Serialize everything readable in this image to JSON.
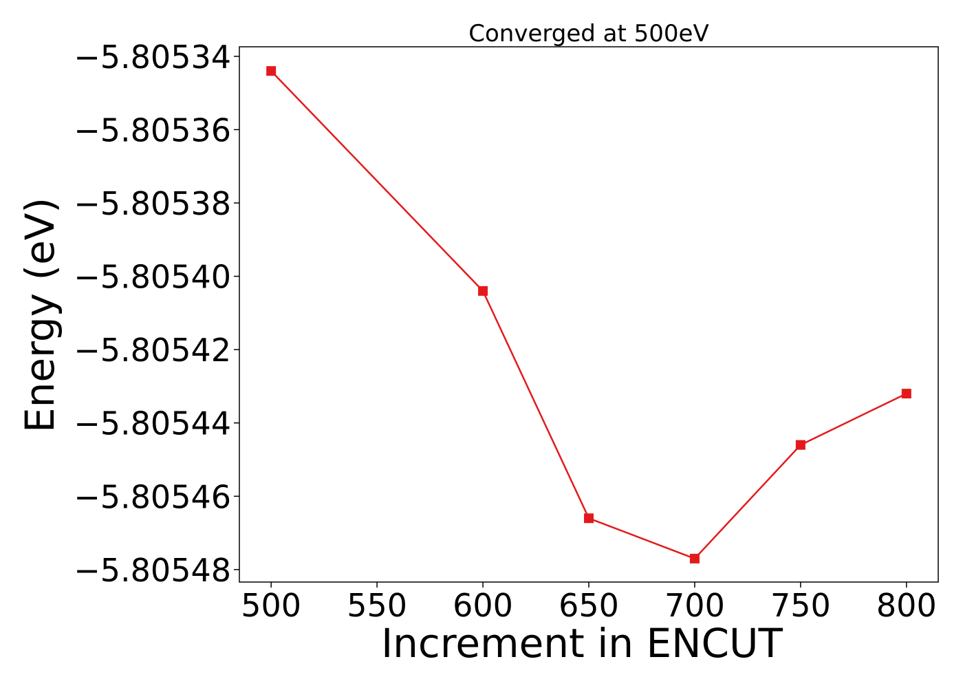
{
  "chart_data": {
    "type": "line",
    "title": "Converged at 500eV",
    "xlabel": "Increment in ENCUT",
    "ylabel": "Energy (eV)",
    "x": [
      500,
      600,
      650,
      700,
      750,
      800
    ],
    "series": [
      {
        "values": [
          -5.805344,
          -5.805404,
          -5.805466,
          -5.805477,
          -5.805446,
          -5.805432
        ],
        "color": "#e31a1c",
        "marker": "square"
      }
    ],
    "xlim": [
      485,
      815
    ],
    "ylim": [
      -5.8054834,
      -5.8053374
    ],
    "xticks": [
      500,
      550,
      600,
      650,
      700,
      750,
      800
    ],
    "xtick_labels": [
      "500",
      "550",
      "600",
      "650",
      "700",
      "750",
      "800"
    ],
    "yticks": [
      -5.80534,
      -5.80536,
      -5.80538,
      -5.8054,
      -5.80542,
      -5.80544,
      -5.80546,
      -5.80548
    ],
    "ytick_labels": [
      "−5.80534",
      "−5.80536",
      "−5.80538",
      "−5.80540",
      "−5.80542",
      "−5.80544",
      "−5.80546",
      "−5.80548"
    ],
    "grid": false,
    "legend": false
  }
}
